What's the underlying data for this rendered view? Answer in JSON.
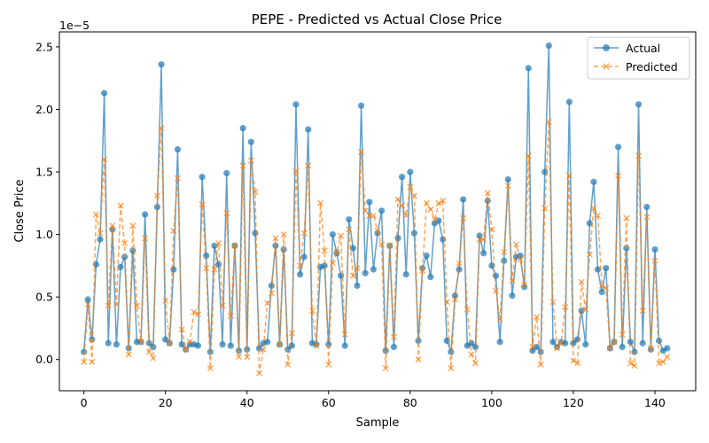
{
  "chart_data": {
    "type": "line",
    "title": "PEPE - Predicted vs Actual Close Price",
    "xlabel": "Sample",
    "ylabel": "Close Price",
    "y_offset_label": "1e−5",
    "xlim": [
      -6,
      150
    ],
    "ylim": [
      -0.25,
      2.62
    ],
    "x_ticks": [
      0,
      20,
      40,
      60,
      80,
      100,
      120,
      140
    ],
    "y_ticks": [
      0.0,
      0.5,
      1.0,
      1.5,
      2.0,
      2.5
    ],
    "y_tick_labels": [
      "0.0",
      "0.5",
      "1.0",
      "1.5",
      "2.0",
      "2.5"
    ],
    "grid": false,
    "legend_position": "top-right",
    "series": [
      {
        "name": "Actual",
        "color": "#1f77b4",
        "line_style": "solid",
        "marker": "circle",
        "values": [
          0.06,
          0.48,
          0.16,
          0.76,
          0.96,
          2.13,
          0.13,
          1.04,
          0.12,
          0.74,
          0.82,
          0.09,
          0.87,
          0.14,
          0.14,
          1.16,
          0.13,
          0.1,
          1.22,
          2.36,
          0.16,
          0.13,
          0.72,
          1.68,
          0.12,
          0.08,
          0.12,
          0.12,
          0.11,
          1.46,
          0.83,
          0.06,
          0.91,
          0.76,
          0.12,
          1.49,
          0.11,
          0.91,
          0.07,
          1.85,
          0.08,
          1.74,
          1.01,
          0.09,
          0.13,
          0.14,
          0.59,
          0.91,
          0.12,
          0.88,
          0.08,
          0.11,
          2.04,
          0.68,
          0.82,
          1.84,
          0.13,
          0.12,
          0.74,
          0.75,
          0.12,
          1.0,
          0.85,
          0.67,
          0.11,
          1.12,
          0.89,
          0.59,
          2.03,
          0.69,
          1.26,
          0.72,
          1.01,
          1.19,
          0.07,
          0.91,
          0.1,
          0.97,
          1.46,
          0.68,
          1.5,
          1.01,
          0.15,
          0.73,
          0.83,
          0.66,
          1.09,
          1.11,
          0.96,
          0.15,
          0.06,
          0.51,
          0.72,
          1.28,
          0.11,
          0.13,
          0.1,
          0.99,
          0.85,
          1.27,
          0.75,
          0.67,
          0.14,
          0.79,
          1.44,
          0.51,
          0.82,
          0.83,
          0.58,
          2.33,
          0.07,
          0.1,
          0.06,
          1.5,
          2.51,
          0.14,
          0.1,
          0.14,
          0.13,
          2.06,
          0.13,
          0.16,
          0.39,
          0.12,
          1.09,
          1.42,
          0.72,
          0.54,
          0.73,
          0.09,
          0.14,
          1.7,
          0.1,
          0.89,
          0.14,
          0.06,
          2.04,
          0.13,
          1.22,
          0.08,
          0.88,
          0.15,
          0.07,
          0.09
        ]
      },
      {
        "name": "Predicted",
        "color": "#ff7f0e",
        "line_style": "dashed",
        "marker": "x",
        "values": [
          -0.02,
          0.44,
          -0.02,
          1.16,
          1.01,
          1.6,
          0.43,
          1.07,
          0.44,
          1.23,
          0.93,
          0.04,
          1.07,
          0.43,
          0.14,
          0.97,
          0.06,
          0.01,
          1.31,
          1.85,
          0.47,
          0.13,
          1.03,
          1.45,
          0.24,
          0.08,
          0.14,
          0.38,
          0.36,
          1.24,
          0.73,
          -0.07,
          0.72,
          0.93,
          0.43,
          1.17,
          0.35,
          0.91,
          0.02,
          1.55,
          0.02,
          1.59,
          1.34,
          -0.11,
          0.08,
          0.45,
          0.53,
          0.97,
          0.12,
          1.0,
          -0.04,
          0.21,
          1.51,
          0.75,
          1.01,
          1.55,
          0.39,
          0.11,
          1.25,
          0.87,
          -0.04,
          0.77,
          0.86,
          0.99,
          0.2,
          1.04,
          0.67,
          0.73,
          1.66,
          1.19,
          1.15,
          1.15,
          1.03,
          0.92,
          -0.07,
          0.91,
          0.18,
          1.28,
          1.23,
          1.15,
          1.38,
          1.31,
          0.0,
          0.71,
          1.25,
          1.2,
          1.12,
          1.25,
          1.27,
          0.46,
          -0.07,
          0.48,
          0.77,
          1.13,
          0.4,
          0.04,
          -0.03,
          0.96,
          0.96,
          1.33,
          1.04,
          0.55,
          0.32,
          0.86,
          1.39,
          0.63,
          0.92,
          0.8,
          0.6,
          1.63,
          0.1,
          0.34,
          -0.04,
          1.21,
          1.9,
          0.46,
          0.09,
          0.13,
          0.42,
          1.47,
          -0.01,
          -0.03,
          0.62,
          0.4,
          0.84,
          1.21,
          1.15,
          0.59,
          0.57,
          0.09,
          0.14,
          1.47,
          0.2,
          1.13,
          -0.03,
          -0.05,
          1.63,
          0.39,
          1.14,
          0.09,
          0.79,
          -0.03,
          -0.02,
          0.02
        ]
      }
    ]
  }
}
